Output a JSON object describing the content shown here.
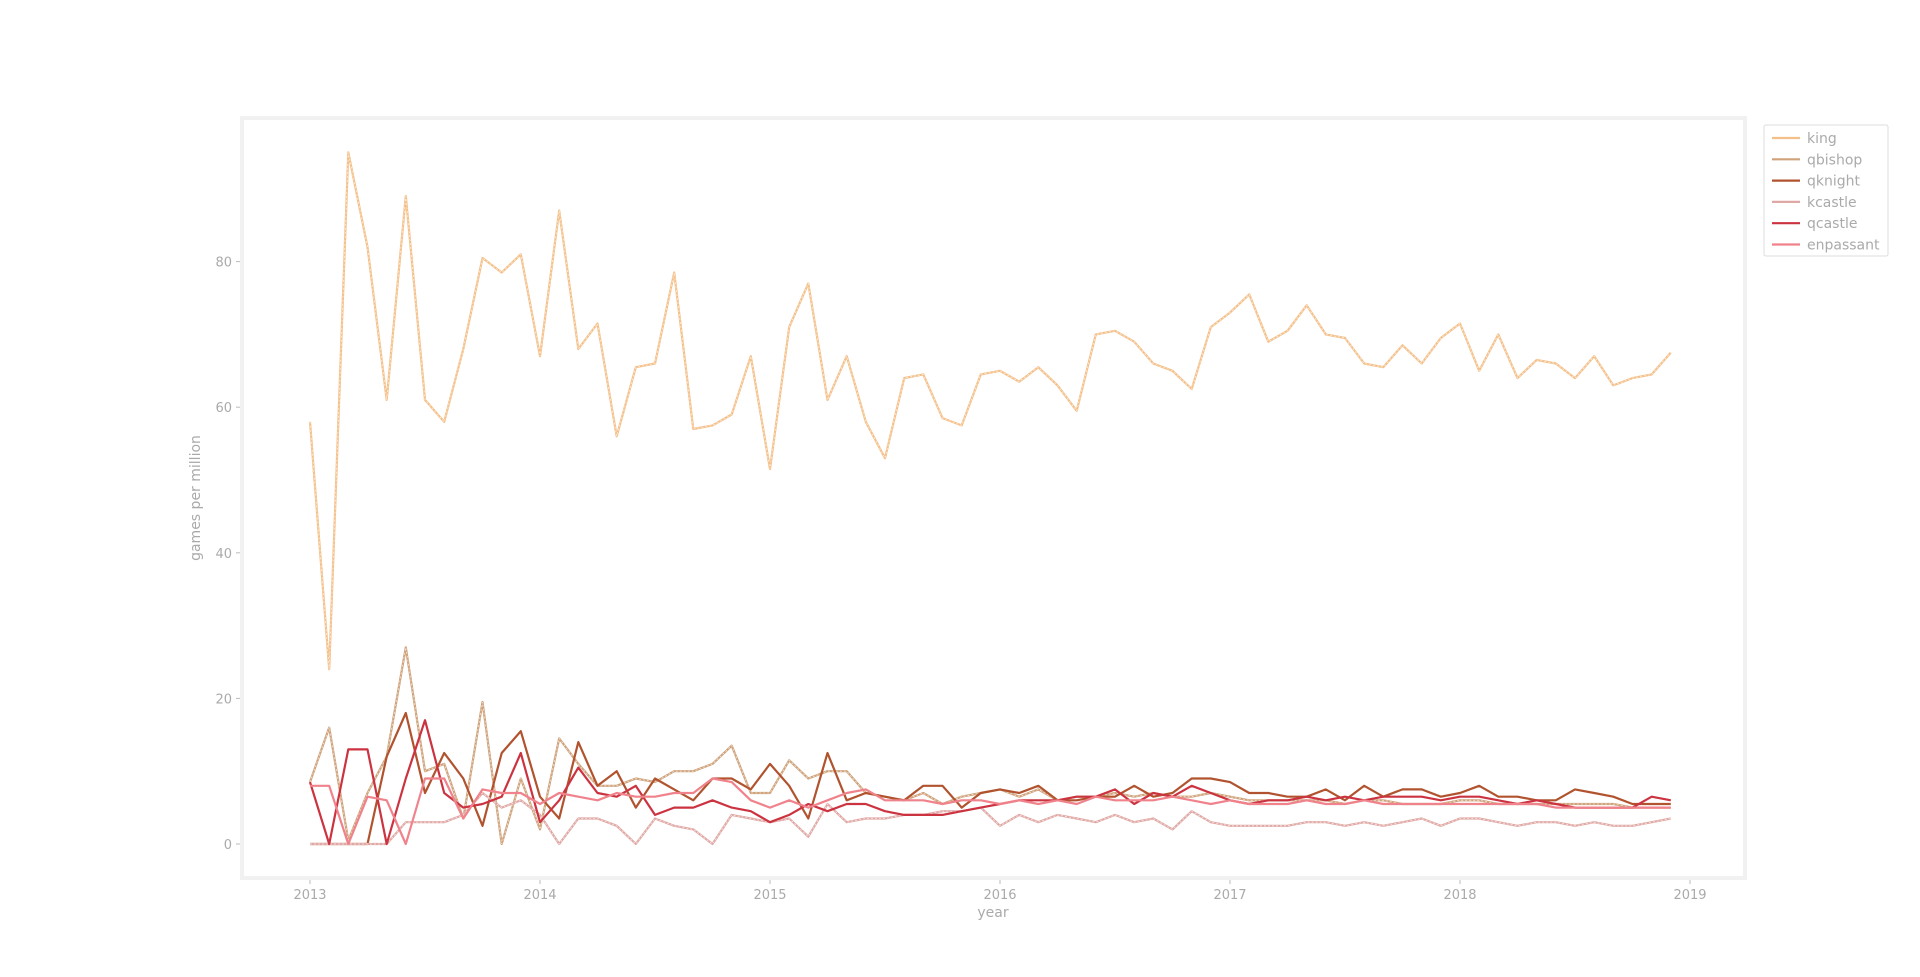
{
  "chart_data": {
    "type": "line",
    "title": "",
    "xlabel": "year",
    "ylabel": "games per million",
    "xlim": [
      2012.6,
      2019.2
    ],
    "ylim": [
      -5,
      99
    ],
    "xticks": [
      2013,
      2014,
      2015,
      2016,
      2017,
      2018,
      2019
    ],
    "xtick_labels": [
      "2013",
      "2014",
      "2015",
      "2016",
      "2017",
      "2018",
      "2019"
    ],
    "yticks": [
      0,
      20,
      40,
      60,
      80
    ],
    "ytick_labels": [
      "0",
      "20",
      "40",
      "60",
      "80"
    ],
    "grid": false,
    "legend": "top-right",
    "x_start": 2013.0,
    "x_step": 0.0833333,
    "series": [
      {
        "name": "king",
        "color": "#f4c08a",
        "dashed": true,
        "values": [
          58,
          24,
          95,
          82,
          61,
          89,
          61,
          58,
          68,
          80.5,
          78.5,
          81,
          67,
          87,
          68,
          71.5,
          56,
          65.5,
          66,
          78.5,
          57,
          57.5,
          59,
          67,
          51.5,
          71,
          77,
          61,
          67,
          58,
          53,
          64,
          64.5,
          58.5,
          57.5,
          64.5,
          65,
          63.5,
          65.5,
          63,
          59.5,
          70,
          70.5,
          69,
          66,
          65,
          62.5,
          71,
          73,
          75.5,
          69,
          70.5,
          74,
          70,
          69.5,
          66,
          65.5,
          68.5,
          66,
          69.5,
          71.5,
          65,
          70,
          64,
          66.5,
          66,
          64,
          67,
          63,
          64,
          64.5,
          67.5
        ]
      },
      {
        "name": "qbishop",
        "color": "#cfa27a",
        "dashed": true,
        "values": [
          8.5,
          16,
          0.5,
          7,
          12,
          27,
          10,
          11,
          3.5,
          19.5,
          0,
          9,
          2,
          14.5,
          11,
          8,
          8,
          9,
          8.5,
          10,
          10,
          11,
          13.5,
          7,
          7,
          11.5,
          9,
          10,
          10,
          7,
          6.5,
          6,
          7,
          5.5,
          6.5,
          7,
          7.5,
          6.5,
          7.5,
          6,
          6.5,
          6.5,
          7,
          6.5,
          7,
          6.5,
          6.5,
          7,
          6.5,
          6,
          6,
          6,
          6,
          6,
          5.5,
          6,
          6,
          5.5,
          5.5,
          5.5,
          6,
          6,
          5.5,
          5.5,
          5.5,
          5.5,
          5.5,
          5.5,
          5.5,
          5,
          5,
          5
        ]
      },
      {
        "name": "qknight",
        "color": "#b0532e",
        "dashed": false,
        "values": [
          0,
          0,
          0,
          0,
          12,
          18,
          7,
          12.5,
          9,
          2.5,
          12.5,
          15.5,
          6.5,
          3.5,
          14,
          8,
          10,
          5,
          9,
          7.5,
          6,
          9,
          9,
          7.5,
          11,
          8,
          3.5,
          12.5,
          6,
          7,
          6.5,
          6,
          8,
          8,
          5,
          7,
          7.5,
          7,
          8,
          6,
          6,
          6.5,
          6.5,
          8,
          6.5,
          7,
          9,
          9,
          8.5,
          7,
          7,
          6.5,
          6.5,
          7.5,
          6,
          8,
          6.5,
          7.5,
          7.5,
          6.5,
          7,
          8,
          6.5,
          6.5,
          6,
          6,
          7.5,
          7,
          6.5,
          5.5,
          5.5,
          5.5
        ]
      },
      {
        "name": "kcastle",
        "color": "#e0a8a4",
        "dashed": true,
        "values": [
          0,
          0,
          0,
          0,
          0,
          3,
          3,
          3,
          4,
          7,
          5,
          6,
          4,
          0,
          3.5,
          3.5,
          2.5,
          0,
          3.5,
          2.5,
          2,
          0,
          4,
          3.5,
          3,
          3.5,
          1,
          5.5,
          3,
          3.5,
          3.5,
          4,
          4,
          4.5,
          4.5,
          5,
          2.5,
          4,
          3,
          4,
          3.5,
          3,
          4,
          3,
          3.5,
          2,
          4.5,
          3,
          2.5,
          2.5,
          2.5,
          2.5,
          3,
          3,
          2.5,
          3,
          2.5,
          3,
          3.5,
          2.5,
          3.5,
          3.5,
          3,
          2.5,
          3,
          3,
          2.5,
          3,
          2.5,
          2.5,
          3,
          3.5
        ]
      },
      {
        "name": "qcastle",
        "color": "#cc3340",
        "dashed": false,
        "values": [
          8.5,
          0,
          13,
          13,
          0,
          9,
          17,
          7,
          5,
          5.5,
          6.5,
          12.5,
          3,
          6,
          10.5,
          7,
          6.5,
          8,
          4,
          5,
          5,
          6,
          5,
          4.5,
          3,
          4,
          5.5,
          4.5,
          5.5,
          5.5,
          4.5,
          4,
          4,
          4,
          4.5,
          5,
          5.5,
          6,
          6,
          6,
          6.5,
          6.5,
          7.5,
          5.5,
          7,
          6.5,
          8,
          7,
          6,
          5.5,
          6,
          6,
          6.5,
          6,
          6.5,
          6,
          6.5,
          6.5,
          6.5,
          6,
          6.5,
          6.5,
          6,
          5.5,
          6,
          5.5,
          5,
          5,
          5,
          5,
          6.5,
          6
        ]
      },
      {
        "name": "enpassant",
        "color": "#f0828c",
        "dashed": false,
        "values": [
          8,
          8,
          0,
          6.5,
          6,
          0,
          9,
          9,
          3.5,
          7.5,
          7,
          7,
          5.5,
          7,
          6.5,
          6,
          7,
          6.5,
          6.5,
          7,
          7,
          9,
          8.5,
          6,
          5,
          6,
          5,
          6,
          7,
          7.5,
          6,
          6,
          6,
          5.5,
          6,
          6,
          5.5,
          6,
          5.5,
          6,
          5.5,
          6.5,
          6,
          6,
          6,
          6.5,
          6,
          5.5,
          6,
          5.5,
          5.5,
          5.5,
          6,
          5.5,
          5.5,
          6,
          5.5,
          5.5,
          5.5,
          5.5,
          5.5,
          5.5,
          5.5,
          5.5,
          5.5,
          5,
          5,
          5,
          5,
          5,
          5,
          5
        ]
      }
    ]
  }
}
